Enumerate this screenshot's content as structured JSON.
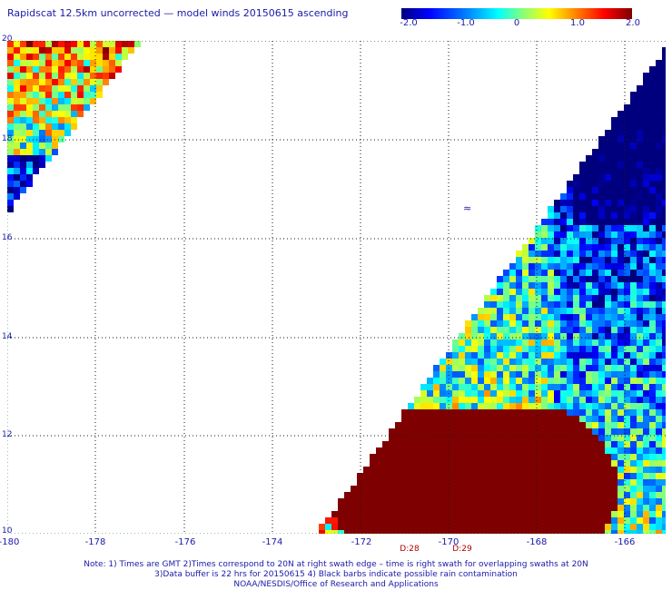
{
  "title": "Rapidscat 12.5km uncorrected — model winds 20150615 ascending",
  "colorbar": {
    "ticks": [
      "-2.0",
      "-1.0",
      "0",
      "1.0",
      "2.0"
    ],
    "range": [
      -2.0,
      2.0
    ]
  },
  "map": {
    "lon_range": [
      -180,
      -165
    ],
    "lat_range": [
      10,
      20
    ],
    "x_ticks": [
      "-180",
      "-178",
      "-176",
      "-174",
      "-172",
      "-170",
      "-168",
      "-166"
    ],
    "y_ticks": [
      "20",
      "18",
      "16",
      "14",
      "12",
      "10"
    ],
    "time_labels": [
      "D:28",
      "D:29"
    ],
    "barb_symbol": "≈"
  },
  "notes": [
    "Note: 1) Times are GMT 2)Times correspond to 20N at right swath edge – time is right swath for overlapping swaths at 20N",
    "3)Data buffer is 22 hrs for 20150615 4) Black barbs indicate possible rain contamination",
    "NOAA/NESDIS/Office of Research and Applications"
  ],
  "colors": {
    "label": "#1a1aa8",
    "time_label": "#b00000",
    "grid": "#1a1a1a",
    "saturated": "#800000"
  }
}
